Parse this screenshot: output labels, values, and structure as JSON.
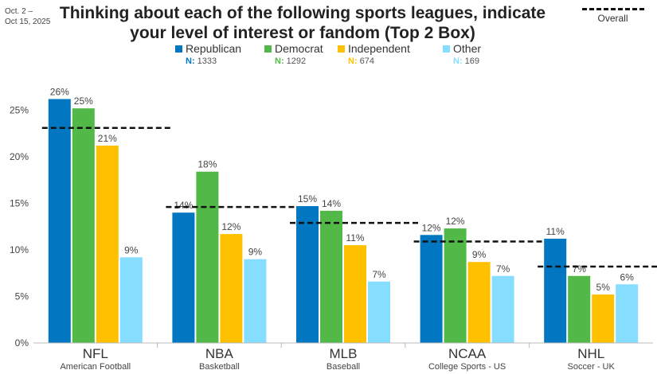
{
  "date_range": "Oct. 2 –\nOct 15, 2025",
  "chart_data": {
    "type": "bar",
    "title": "Thinking about each of the following sports leagues, indicate your level of interest or fandom (Top 2 Box)",
    "categories": [
      "NFL",
      "NBA",
      "MLB",
      "NCAA",
      "NHL"
    ],
    "subcategories": [
      "American Football",
      "Basketball",
      "Baseball",
      "College Sports - US",
      "Soccer - UK"
    ],
    "series": [
      {
        "name": "Republican",
        "n_label": "N:",
        "n_value": "1333",
        "color": "#0077C0",
        "values": [
          26.2,
          14.0,
          14.7,
          11.6,
          11.2
        ],
        "labels": [
          "26%",
          "14%",
          "15%",
          "12%",
          "11%"
        ]
      },
      {
        "name": "Democrat",
        "n_label": "N:",
        "n_value": "1292",
        "color": "#52B848",
        "values": [
          25.2,
          18.4,
          14.2,
          12.3,
          7.2
        ],
        "labels": [
          "25%",
          "18%",
          "14%",
          "12%",
          "7%"
        ]
      },
      {
        "name": "Independent",
        "n_label": "N:",
        "n_value": "674",
        "color": "#FFC000",
        "values": [
          21.2,
          11.7,
          10.5,
          8.7,
          5.2
        ],
        "labels": [
          "21%",
          "12%",
          "11%",
          "9%",
          "5%"
        ]
      },
      {
        "name": "Other",
        "n_label": "N:",
        "n_value": "169",
        "color": "#85DDFF",
        "values": [
          9.2,
          9.0,
          6.6,
          7.2,
          6.3
        ],
        "labels": [
          "9%",
          "9%",
          "7%",
          "7%",
          "6%"
        ]
      }
    ],
    "overall": {
      "name": "Overall",
      "values": [
        23.1,
        14.6,
        12.9,
        10.9,
        8.2
      ]
    },
    "ylim": [
      0,
      30
    ],
    "yticks": [
      0,
      5,
      10,
      15,
      20,
      25
    ],
    "ytick_labels": [
      "0%",
      "5%",
      "10%",
      "15%",
      "20%",
      "25%"
    ],
    "grid": false,
    "legend": "top"
  }
}
